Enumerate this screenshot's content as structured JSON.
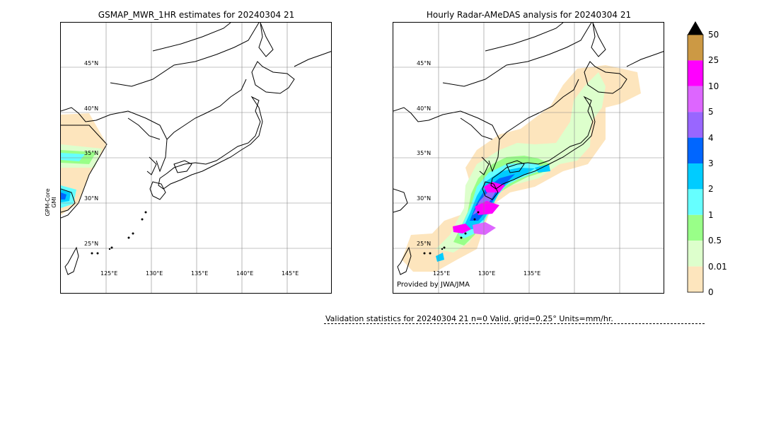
{
  "left_panel": {
    "title": "GSMAP_MWR_1HR estimates for 20240304 21",
    "side_label_line1": "GPM-Core",
    "side_label_line2": "GMI",
    "lat_labels": [
      "45°N",
      "40°N",
      "35°N",
      "30°N",
      "25°N"
    ],
    "lon_labels": [
      "125°E",
      "130°E",
      "135°E",
      "140°E",
      "145°E"
    ]
  },
  "right_panel": {
    "title": "Hourly Radar-AMeDAS analysis for 20240304 21",
    "lat_labels": [
      "45°N",
      "40°N",
      "35°N",
      "30°N",
      "25°N"
    ],
    "lon_labels": [
      "125°E",
      "130°E",
      "135°E"
    ],
    "credit": "Provided by JWA/JMA"
  },
  "colorbar": {
    "labels": [
      "50",
      "25",
      "10",
      "5",
      "4",
      "3",
      "2",
      "1",
      "0.5",
      "0.01",
      "0"
    ],
    "colors": [
      "#cc9944",
      "#ff00ff",
      "#dd66ff",
      "#9966ff",
      "#0066ff",
      "#00ccff",
      "#66ffff",
      "#99ff88",
      "#ddffcc",
      "#fde5bd"
    ],
    "extend_color": "#000000"
  },
  "validation": {
    "text": "Validation statistics for 20240304 21  n=0 Valid. grid=0.25° Units=mm/hr."
  }
}
